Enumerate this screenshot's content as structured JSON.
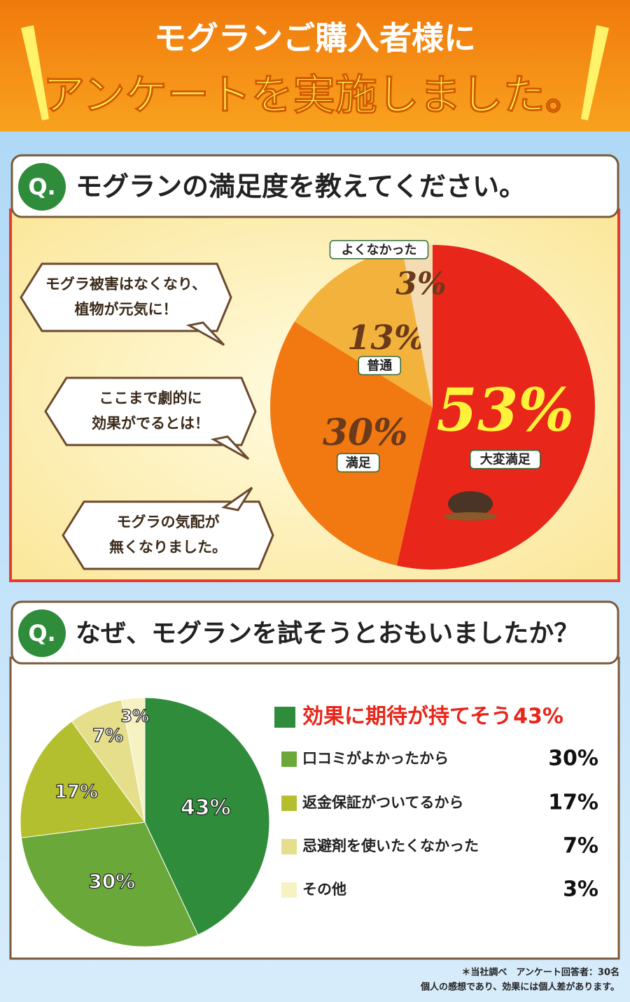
{
  "header": {
    "line1": "モグランご購入者様に",
    "line2": "アンケートを実施しました。"
  },
  "bubbles": [
    [
      "モグラ被害はなくなり、",
      "植物が元気に！"
    ],
    [
      "ここまで劇的に",
      "効果がでるとは！"
    ],
    [
      "モグラの気配が",
      "無くなりました。"
    ]
  ],
  "notes": [
    "＊当社調べ　アンケート回答者：30名",
    "個人の感想であり、効果には個人差があります。"
  ],
  "chart_data": [
    {
      "type": "pie",
      "badge": "Q.",
      "title": "モグランの満足度を教えてください。",
      "categories": [
        "大変満足",
        "満足",
        "普通",
        "よくなかった"
      ],
      "values": [
        53,
        30,
        13,
        3
      ],
      "value_labels": [
        "53%",
        "30%",
        "13%",
        "3%"
      ],
      "colors": [
        "#e8261a",
        "#f27812",
        "#f3b23c",
        "#f4dcb4"
      ]
    },
    {
      "type": "pie",
      "badge": "Q.",
      "title": "なぜ、モグランを試そうとおもいましたか？",
      "categories": [
        "効果に期待が持てそう",
        "口コミがよかったから",
        "返金保証がついてるから",
        "忌避剤を使いたくなかった",
        "その他"
      ],
      "values": [
        43,
        30,
        17,
        7,
        3
      ],
      "value_labels": [
        "43%",
        "30%",
        "17%",
        "7%",
        "3%"
      ],
      "colors": [
        "#2f8c3b",
        "#6aa83a",
        "#b4bf2f",
        "#e5df8c",
        "#f6f2c2"
      ]
    }
  ]
}
